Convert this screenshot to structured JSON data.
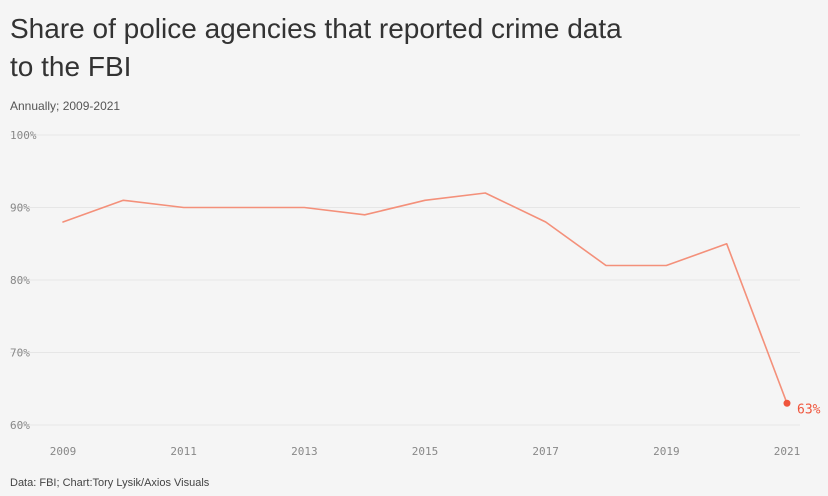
{
  "title": "Share of police agencies that reported crime data to the FBI",
  "subtitle": "Annually; 2009-2021",
  "source": "Data: FBI; Chart:Tory Lysik/Axios Visuals",
  "colors": {
    "line": "#f4907a",
    "end_marker": "#f0553c",
    "grid": "#e6e6e6",
    "background": "#f5f5f5"
  },
  "chart_data": {
    "type": "line",
    "title": "Share of police agencies that reported crime data to the FBI",
    "subtitle": "Annually; 2009-2021",
    "xlabel": "",
    "ylabel": "",
    "x": [
      2009,
      2010,
      2011,
      2012,
      2013,
      2014,
      2015,
      2016,
      2017,
      2018,
      2019,
      2020,
      2021
    ],
    "series": [
      {
        "values": [
          88,
          91,
          90,
          90,
          90,
          89,
          91,
          92,
          88,
          82,
          82,
          85,
          63
        ]
      }
    ],
    "xlim": [
      2009,
      2021
    ],
    "ylim": [
      60,
      100
    ],
    "x_ticks": [
      "2009",
      "2011",
      "2013",
      "2015",
      "2017",
      "2019",
      "2021"
    ],
    "y_ticks": [
      "100%",
      "90%",
      "80%",
      "70%",
      "60%"
    ],
    "grid": true,
    "end_label": "63%"
  }
}
